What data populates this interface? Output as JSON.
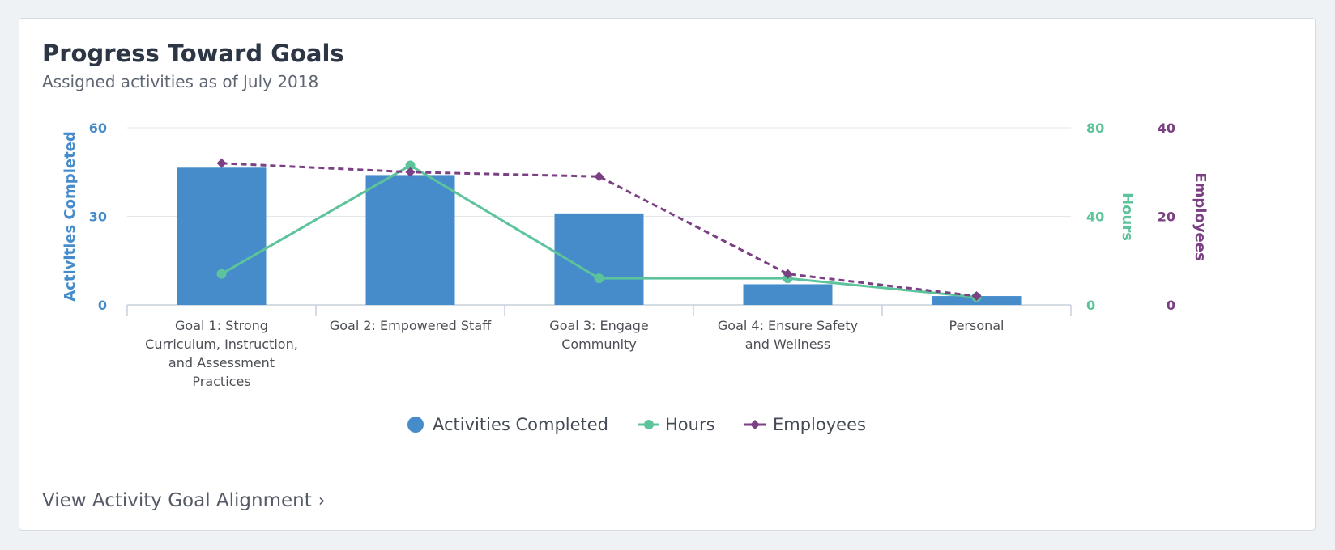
{
  "header": {
    "title": "Progress Toward Goals",
    "subtitle": "Assigned activities as of July 2018"
  },
  "footer": {
    "link_label": "View Activity Goal Alignment",
    "link_icon": "chevron-right-icon"
  },
  "colors": {
    "activities": "#468ccb",
    "hours": "#5cc39b",
    "employees": "#7b3f83",
    "grid": "#e3e6ea",
    "axis_text": "#4c4f55"
  },
  "chart_data": {
    "type": "bar",
    "categories": [
      [
        "Goal 1: Strong",
        "Curriculum, Instruction,",
        "and Assessment",
        "Practices"
      ],
      [
        "Goal 2: Empowered Staff"
      ],
      [
        "Goal 3: Engage",
        "Community"
      ],
      [
        "Goal 4: Ensure Safety",
        "and Wellness"
      ],
      [
        "Personal"
      ]
    ],
    "series": [
      {
        "name": "Activities Completed",
        "type": "bar",
        "axis": "left",
        "values": [
          46.5,
          44,
          31,
          7,
          3
        ]
      },
      {
        "name": "Hours",
        "type": "line",
        "axis": "right1",
        "values": [
          14,
          63,
          12,
          12,
          3.5
        ]
      },
      {
        "name": "Employees",
        "type": "line",
        "axis": "right2",
        "dashed": true,
        "values": [
          32,
          30,
          29,
          7,
          2
        ]
      }
    ],
    "axes": {
      "left": {
        "label": "Activities Completed",
        "range": [
          0,
          60
        ],
        "ticks": [
          0,
          30,
          60
        ]
      },
      "right1": {
        "label": "Hours",
        "range": [
          0,
          80
        ],
        "ticks": [
          0,
          40,
          80
        ]
      },
      "right2": {
        "label": "Employees",
        "range": [
          0,
          40
        ],
        "ticks": [
          0,
          20,
          40
        ]
      }
    },
    "grid": true,
    "legend_position": "bottom-center"
  }
}
